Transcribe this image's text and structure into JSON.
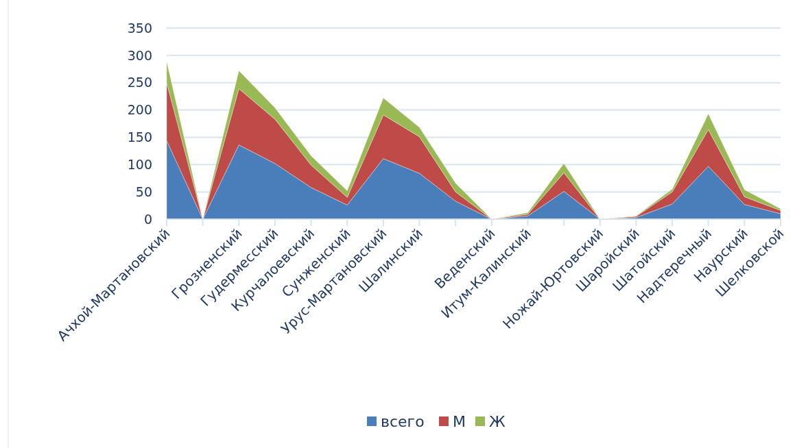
{
  "chart_data": {
    "type": "area",
    "stacked": true,
    "categories": [
      "Ачхой-Мартановский",
      null,
      "Грозненский",
      "Гудермесский",
      "Курчалоевский",
      "Сунженский",
      "Урус-Мартановский",
      "Шалинский",
      null,
      "Веденский",
      "Итум-Калинский",
      null,
      "Ножай-Юртовский",
      "Шаройский",
      "Шатойский",
      "Надтеречный",
      "Наурский",
      "Шелковской"
    ],
    "series": [
      {
        "name": "всего",
        "color": "#4a7ebb",
        "values": [
          144,
          0,
          136,
          102,
          58,
          26,
          111,
          84,
          33,
          0,
          6,
          51,
          0,
          3,
          28,
          97,
          27,
          10
        ]
      },
      {
        "name": "М",
        "color": "#be4b48",
        "values": [
          106,
          0,
          103,
          81,
          41,
          14,
          80,
          67,
          17,
          0,
          3,
          34,
          0,
          2,
          22,
          67,
          14,
          6
        ]
      },
      {
        "name": "Ж",
        "color": "#98b954",
        "values": [
          39,
          0,
          33,
          21,
          17,
          12,
          31,
          17,
          16,
          0,
          3,
          17,
          0,
          1,
          5,
          29,
          13,
          3
        ]
      }
    ],
    "ylim": [
      0,
      350
    ],
    "yticks": [
      0,
      50,
      100,
      150,
      200,
      250,
      300,
      350
    ],
    "grid": "y",
    "legend": "bottom"
  }
}
